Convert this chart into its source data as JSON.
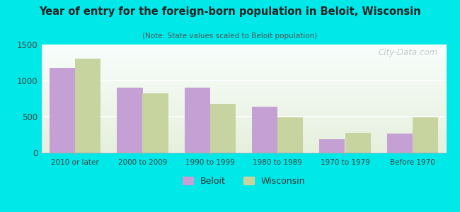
{
  "title": "Year of entry for the foreign-born population in Beloit, Wisconsin",
  "subtitle": "(Note: State values scaled to Beloit population)",
  "categories": [
    "2010 or later",
    "2000 to 2009",
    "1990 to 1999",
    "1980 to 1989",
    "1970 to 1979",
    "Before 1970"
  ],
  "beloit_values": [
    1175,
    900,
    900,
    640,
    190,
    260
  ],
  "wisconsin_values": [
    1300,
    825,
    675,
    490,
    275,
    490
  ],
  "beloit_color": "#c4a0d4",
  "wisconsin_color": "#c8d4a0",
  "background_color": "#00e8e8",
  "ylim": [
    0,
    1500
  ],
  "yticks": [
    0,
    500,
    1000,
    1500
  ],
  "bar_width": 0.38,
  "legend_labels": [
    "Beloit",
    "Wisconsin"
  ],
  "watermark": "City-Data.com"
}
